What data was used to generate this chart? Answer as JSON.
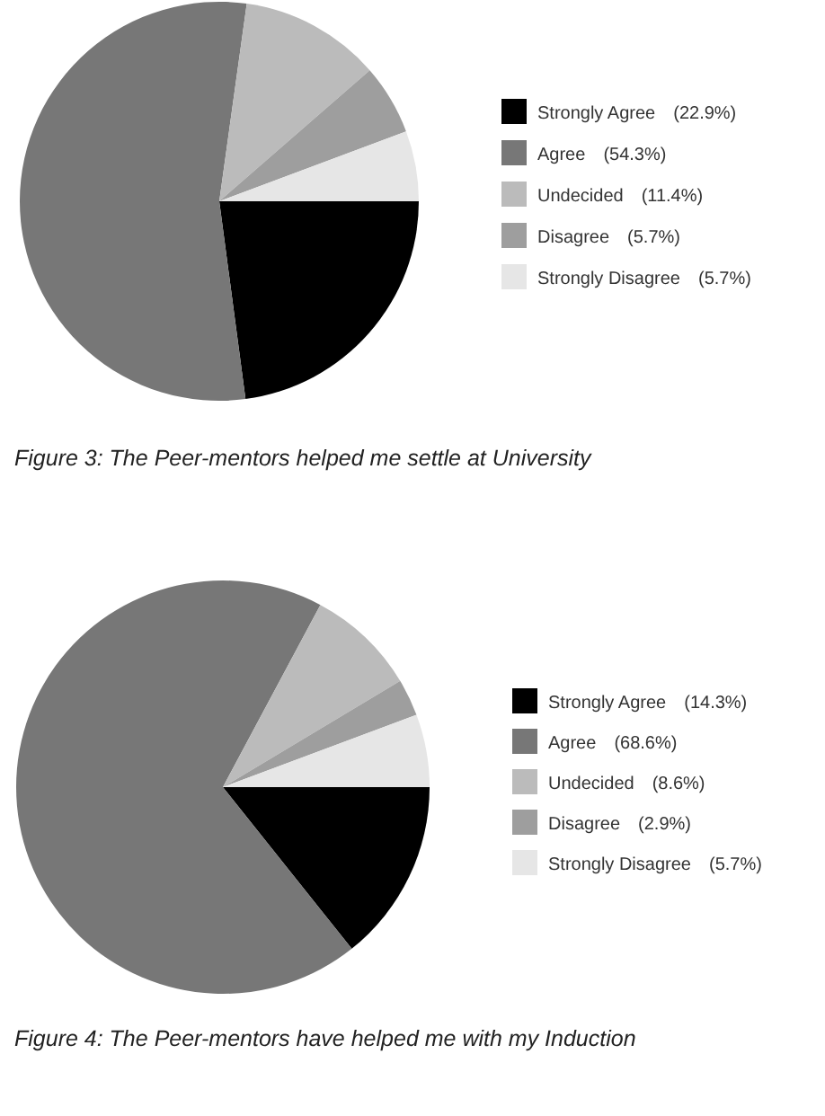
{
  "chart_data": [
    {
      "type": "pie",
      "title": "Figure 3: The Peer-mentors helped me settle at University",
      "categories": [
        "Strongly Agree",
        "Agree",
        "Undecided",
        "Disagree",
        "Strongly Disagree"
      ],
      "values": [
        22.9,
        54.3,
        11.4,
        5.7,
        5.7
      ],
      "value_labels": [
        "(22.9%)",
        "(54.3%)",
        "(11.4%)",
        "(5.7%)",
        "(5.7%)"
      ],
      "colors": [
        "#000000",
        "#777777",
        "#bbbbbb",
        "#9e9e9e",
        "#e6e6e6"
      ],
      "legend": "right"
    },
    {
      "type": "pie",
      "title": "Figure 4: The Peer-mentors have helped me with my Induction",
      "categories": [
        "Strongly Agree",
        "Agree",
        "Undecided",
        "Disagree",
        "Strongly Disagree"
      ],
      "values": [
        14.3,
        68.6,
        8.6,
        2.9,
        5.7
      ],
      "value_labels": [
        "(14.3%)",
        "(68.6%)",
        "(8.6%)",
        "(2.9%)",
        "(5.7%)"
      ],
      "colors": [
        "#000000",
        "#777777",
        "#bbbbbb",
        "#9e9e9e",
        "#e6e6e6"
      ],
      "legend": "right"
    }
  ]
}
